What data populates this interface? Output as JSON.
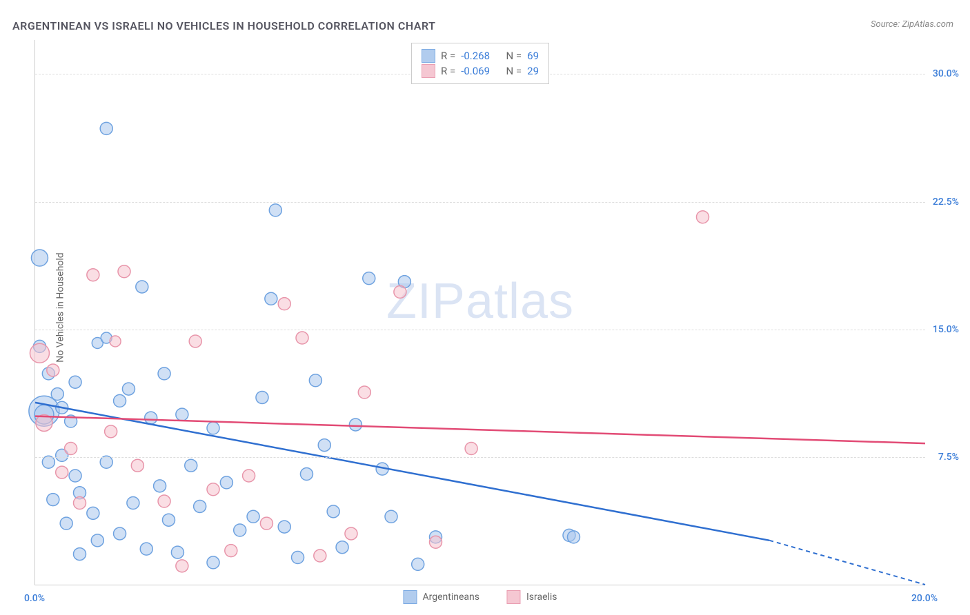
{
  "title": "ARGENTINEAN VS ISRAELI NO VEHICLES IN HOUSEHOLD CORRELATION CHART",
  "source_label": "Source:",
  "source_name": "ZipAtlas.com",
  "y_axis_label": "No Vehicles in Household",
  "watermark": "ZIPatlas",
  "chart": {
    "type": "scatter_with_regression",
    "x_range": [
      0.0,
      20.0
    ],
    "y_range": [
      0.0,
      32.0
    ],
    "x_ticks": [
      0.0,
      20.0
    ],
    "y_ticks": [
      7.5,
      15.0,
      22.5,
      30.0
    ],
    "x_tick_format": "percent1",
    "y_tick_format": "percent1",
    "grid_color": "#dddddd",
    "axis_color": "#cccccc",
    "background": "#ffffff",
    "tick_label_color": "#3b7dd8",
    "series": [
      {
        "key": "argentineans",
        "label": "Argentineans",
        "R": -0.268,
        "N": 69,
        "fill": "#a9c7ed",
        "fill_opacity": 0.55,
        "stroke": "#6ea2e0",
        "line_color": "#2f6fd0",
        "reg_start": [
          0.0,
          10.7
        ],
        "reg_solid_end": [
          16.5,
          2.6
        ],
        "reg_dash_end": [
          20.0,
          0.0
        ],
        "points": [
          {
            "x": 0.1,
            "y": 19.2,
            "r": 12
          },
          {
            "x": 0.2,
            "y": 10.2,
            "r": 22
          },
          {
            "x": 1.6,
            "y": 26.8,
            "r": 9
          },
          {
            "x": 0.1,
            "y": 14.0,
            "r": 9
          },
          {
            "x": 0.3,
            "y": 12.4,
            "r": 9
          },
          {
            "x": 0.5,
            "y": 11.2,
            "r": 9
          },
          {
            "x": 0.6,
            "y": 10.4,
            "r": 9
          },
          {
            "x": 0.9,
            "y": 11.9,
            "r": 9
          },
          {
            "x": 0.8,
            "y": 9.6,
            "r": 9
          },
          {
            "x": 0.3,
            "y": 7.2,
            "r": 9
          },
          {
            "x": 0.6,
            "y": 7.6,
            "r": 9
          },
          {
            "x": 0.9,
            "y": 6.4,
            "r": 9
          },
          {
            "x": 1.4,
            "y": 14.2,
            "r": 8
          },
          {
            "x": 1.6,
            "y": 14.5,
            "r": 8
          },
          {
            "x": 1.9,
            "y": 10.8,
            "r": 9
          },
          {
            "x": 2.1,
            "y": 11.5,
            "r": 9
          },
          {
            "x": 2.4,
            "y": 17.5,
            "r": 9
          },
          {
            "x": 2.9,
            "y": 12.4,
            "r": 9
          },
          {
            "x": 2.6,
            "y": 9.8,
            "r": 9
          },
          {
            "x": 1.6,
            "y": 7.2,
            "r": 9
          },
          {
            "x": 1.0,
            "y": 5.4,
            "r": 9
          },
          {
            "x": 0.4,
            "y": 5.0,
            "r": 9
          },
          {
            "x": 0.7,
            "y": 3.6,
            "r": 9
          },
          {
            "x": 1.3,
            "y": 4.2,
            "r": 9
          },
          {
            "x": 1.9,
            "y": 3.0,
            "r": 9
          },
          {
            "x": 2.2,
            "y": 4.8,
            "r": 9
          },
          {
            "x": 2.5,
            "y": 2.1,
            "r": 9
          },
          {
            "x": 2.8,
            "y": 5.8,
            "r": 9
          },
          {
            "x": 3.0,
            "y": 3.8,
            "r": 9
          },
          {
            "x": 3.3,
            "y": 10.0,
            "r": 9
          },
          {
            "x": 3.5,
            "y": 7.0,
            "r": 9
          },
          {
            "x": 3.7,
            "y": 4.6,
            "r": 9
          },
          {
            "x": 4.0,
            "y": 9.2,
            "r": 9
          },
          {
            "x": 4.3,
            "y": 6.0,
            "r": 9
          },
          {
            "x": 4.6,
            "y": 3.2,
            "r": 9
          },
          {
            "x": 4.9,
            "y": 4.0,
            "r": 9
          },
          {
            "x": 5.1,
            "y": 11.0,
            "r": 9
          },
          {
            "x": 5.3,
            "y": 16.8,
            "r": 9
          },
          {
            "x": 5.4,
            "y": 22.0,
            "r": 9
          },
          {
            "x": 5.6,
            "y": 3.4,
            "r": 9
          },
          {
            "x": 5.9,
            "y": 1.6,
            "r": 9
          },
          {
            "x": 6.1,
            "y": 6.5,
            "r": 9
          },
          {
            "x": 6.3,
            "y": 12.0,
            "r": 9
          },
          {
            "x": 6.5,
            "y": 8.2,
            "r": 9
          },
          {
            "x": 6.7,
            "y": 4.3,
            "r": 9
          },
          {
            "x": 6.9,
            "y": 2.2,
            "r": 9
          },
          {
            "x": 7.2,
            "y": 9.4,
            "r": 9
          },
          {
            "x": 7.5,
            "y": 18.0,
            "r": 9
          },
          {
            "x": 7.8,
            "y": 6.8,
            "r": 9
          },
          {
            "x": 8.0,
            "y": 4.0,
            "r": 9
          },
          {
            "x": 8.3,
            "y": 17.8,
            "r": 9
          },
          {
            "x": 8.6,
            "y": 1.2,
            "r": 9
          },
          {
            "x": 9.0,
            "y": 2.8,
            "r": 9
          },
          {
            "x": 1.0,
            "y": 1.8,
            "r": 9
          },
          {
            "x": 1.4,
            "y": 2.6,
            "r": 9
          },
          {
            "x": 3.2,
            "y": 1.9,
            "r": 9
          },
          {
            "x": 4.0,
            "y": 1.3,
            "r": 9
          },
          {
            "x": 12.0,
            "y": 2.9,
            "r": 9
          },
          {
            "x": 12.1,
            "y": 2.8,
            "r": 9
          },
          {
            "x": 0.2,
            "y": 10.0,
            "r": 14
          }
        ]
      },
      {
        "key": "israelis",
        "label": "Israelis",
        "R": -0.069,
        "N": 29,
        "fill": "#f5c2ce",
        "fill_opacity": 0.55,
        "stroke": "#e895aa",
        "line_color": "#e24b75",
        "reg_start": [
          0.0,
          9.9
        ],
        "reg_solid_end": [
          20.0,
          8.3
        ],
        "reg_dash_end": null,
        "points": [
          {
            "x": 0.1,
            "y": 13.6,
            "r": 14
          },
          {
            "x": 0.2,
            "y": 9.5,
            "r": 12
          },
          {
            "x": 0.4,
            "y": 12.6,
            "r": 9
          },
          {
            "x": 0.6,
            "y": 6.6,
            "r": 9
          },
          {
            "x": 0.8,
            "y": 8.0,
            "r": 9
          },
          {
            "x": 1.0,
            "y": 4.8,
            "r": 9
          },
          {
            "x": 1.3,
            "y": 18.2,
            "r": 9
          },
          {
            "x": 1.7,
            "y": 9.0,
            "r": 9
          },
          {
            "x": 1.8,
            "y": 14.3,
            "r": 8
          },
          {
            "x": 2.0,
            "y": 18.4,
            "r": 9
          },
          {
            "x": 2.3,
            "y": 7.0,
            "r": 9
          },
          {
            "x": 2.9,
            "y": 4.9,
            "r": 9
          },
          {
            "x": 3.3,
            "y": 1.1,
            "r": 9
          },
          {
            "x": 3.6,
            "y": 14.3,
            "r": 9
          },
          {
            "x": 4.0,
            "y": 5.6,
            "r": 9
          },
          {
            "x": 4.4,
            "y": 2.0,
            "r": 9
          },
          {
            "x": 4.8,
            "y": 6.4,
            "r": 9
          },
          {
            "x": 5.2,
            "y": 3.6,
            "r": 9
          },
          {
            "x": 5.6,
            "y": 16.5,
            "r": 9
          },
          {
            "x": 6.0,
            "y": 14.5,
            "r": 9
          },
          {
            "x": 6.4,
            "y": 1.7,
            "r": 9
          },
          {
            "x": 7.1,
            "y": 3.0,
            "r": 9
          },
          {
            "x": 7.4,
            "y": 11.3,
            "r": 9
          },
          {
            "x": 8.2,
            "y": 17.2,
            "r": 9
          },
          {
            "x": 9.0,
            "y": 2.5,
            "r": 9
          },
          {
            "x": 9.8,
            "y": 8.0,
            "r": 9
          },
          {
            "x": 15.0,
            "y": 21.6,
            "r": 9
          }
        ]
      }
    ]
  },
  "legend": {
    "r_label": "R =",
    "n_label": "N ="
  }
}
